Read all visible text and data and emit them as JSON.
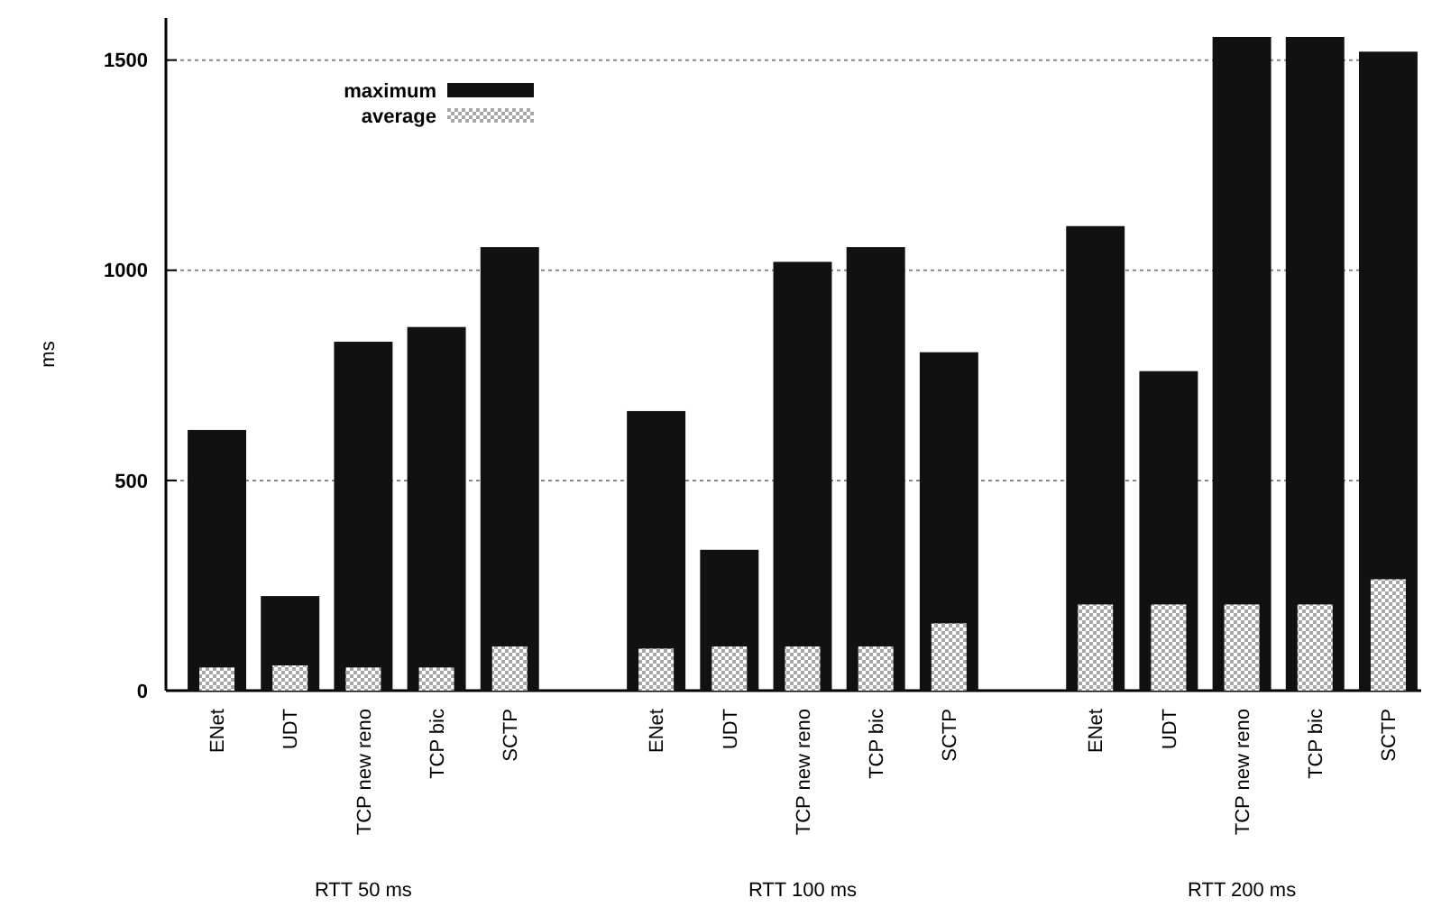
{
  "chart_data": {
    "type": "bar",
    "ylabel": "ms",
    "categories": [
      "ENet",
      "UDT",
      "TCP new reno",
      "TCP bic",
      "SCTP",
      null,
      "ENet",
      "UDT",
      "TCP new reno",
      "TCP bic",
      "SCTP",
      null,
      "ENet",
      "UDT",
      "TCP new reno",
      "TCP bic",
      "SCTP"
    ],
    "series": [
      {
        "name": "maximum",
        "color": "#111111",
        "values": [
          620,
          225,
          830,
          865,
          1055,
          null,
          665,
          335,
          1020,
          1055,
          805,
          null,
          1105,
          760,
          1555,
          1555,
          1520
        ]
      },
      {
        "name": "average",
        "color": "#a8a8a8",
        "values": [
          55,
          60,
          55,
          55,
          105,
          null,
          100,
          105,
          105,
          105,
          160,
          null,
          205,
          205,
          205,
          205,
          265
        ]
      }
    ],
    "ylim": [
      0,
      1600
    ],
    "yticks": [
      0,
      500,
      1000,
      1500
    ],
    "grid": "y",
    "legend": "top left",
    "annotations": [
      "RTT 50 ms",
      "RTT 100 ms",
      "RTT 200 ms"
    ]
  }
}
